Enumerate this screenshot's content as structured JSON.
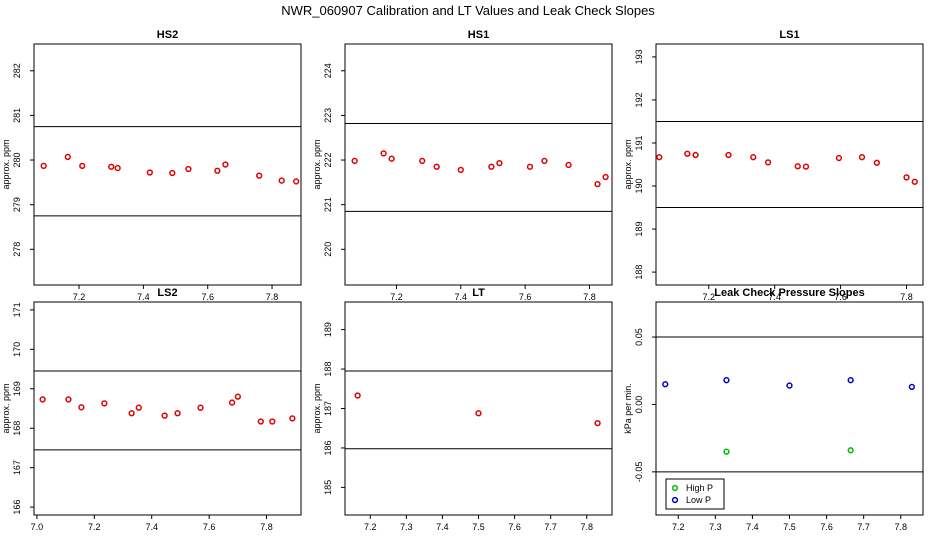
{
  "main_title": "NWR_060907  Calibration and LT Values and Leak Check Slopes",
  "chart_data": [
    {
      "type": "scatter",
      "title": "HS2",
      "ylabel": "approx. ppm",
      "xlim": [
        7.06,
        7.89
      ],
      "ylim": [
        277.2,
        282.6
      ],
      "xticks": [
        7.2,
        7.4,
        7.6,
        7.8
      ],
      "xtick_labels": [
        "7.2",
        "7.4",
        "7.6",
        "7.8"
      ],
      "yticks": [
        278,
        279,
        280,
        281,
        282
      ],
      "ytick_labels": [
        "278",
        "279",
        "280",
        "281",
        "282"
      ],
      "hlines": [
        280.75,
        278.75
      ],
      "series": [
        {
          "color": "#e00000",
          "marker": "circle",
          "x": [
            7.09,
            7.165,
            7.21,
            7.3,
            7.32,
            7.42,
            7.49,
            7.54,
            7.63,
            7.655,
            7.76,
            7.83,
            7.875
          ],
          "y": [
            279.87,
            280.07,
            279.87,
            279.85,
            279.82,
            279.72,
            279.71,
            279.8,
            279.76,
            279.9,
            279.65,
            279.54,
            279.52
          ]
        }
      ]
    },
    {
      "type": "scatter",
      "title": "HS1",
      "ylabel": "approx. ppm",
      "xlim": [
        7.04,
        7.87
      ],
      "ylim": [
        219.2,
        224.6
      ],
      "xticks": [
        7.2,
        7.4,
        7.6,
        7.8
      ],
      "xtick_labels": [
        "7.2",
        "7.4",
        "7.6",
        "7.8"
      ],
      "yticks": [
        220,
        221,
        222,
        223,
        224
      ],
      "ytick_labels": [
        "220",
        "221",
        "222",
        "223",
        "224"
      ],
      "hlines": [
        222.82,
        220.85
      ],
      "series": [
        {
          "color": "#e00000",
          "marker": "circle",
          "x": [
            7.07,
            7.16,
            7.185,
            7.28,
            7.325,
            7.4,
            7.495,
            7.52,
            7.615,
            7.66,
            7.735,
            7.825,
            7.85
          ],
          "y": [
            221.98,
            222.15,
            222.03,
            221.98,
            221.85,
            221.78,
            221.85,
            221.93,
            221.85,
            221.98,
            221.89,
            221.46,
            221.62
          ]
        }
      ]
    },
    {
      "type": "scatter",
      "title": "LS1",
      "ylabel": "approx. ppm",
      "xlim": [
        7.04,
        7.85
      ],
      "ylim": [
        187.7,
        193.3
      ],
      "xticks": [
        7.2,
        7.4,
        7.6,
        7.8
      ],
      "xtick_labels": [
        "7.2",
        "7.4",
        "7.6",
        "7.8"
      ],
      "yticks": [
        188,
        189,
        190,
        191,
        192,
        193
      ],
      "ytick_labels": [
        "188",
        "189",
        "190",
        "191",
        "192",
        "193"
      ],
      "hlines": [
        191.5,
        189.5
      ],
      "series": [
        {
          "color": "#e00000",
          "marker": "circle",
          "x": [
            7.05,
            7.135,
            7.16,
            7.26,
            7.335,
            7.38,
            7.47,
            7.495,
            7.595,
            7.665,
            7.71,
            7.8,
            7.825
          ],
          "y": [
            190.67,
            190.75,
            190.72,
            190.72,
            190.67,
            190.55,
            190.46,
            190.45,
            190.65,
            190.67,
            190.54,
            190.2,
            190.1
          ]
        }
      ]
    },
    {
      "type": "scatter",
      "title": "LS2",
      "ylabel": "approx. ppm",
      "xlim": [
        6.99,
        7.92
      ],
      "ylim": [
        165.8,
        171.2
      ],
      "xticks": [
        7.0,
        7.2,
        7.4,
        7.6,
        7.8
      ],
      "xtick_labels": [
        "7.0",
        "7.2",
        "7.4",
        "7.6",
        "7.8"
      ],
      "yticks": [
        166,
        167,
        168,
        169,
        170,
        171
      ],
      "ytick_labels": [
        "166",
        "167",
        "168",
        "169",
        "170",
        "171"
      ],
      "hlines": [
        169.45,
        167.45
      ],
      "series": [
        {
          "color": "#e00000",
          "marker": "circle",
          "x": [
            7.02,
            7.11,
            7.155,
            7.235,
            7.33,
            7.355,
            7.445,
            7.49,
            7.57,
            7.68,
            7.7,
            7.78,
            7.82,
            7.89
          ],
          "y": [
            168.73,
            168.73,
            168.53,
            168.63,
            168.38,
            168.52,
            168.32,
            168.38,
            168.52,
            168.65,
            168.8,
            168.17,
            168.17,
            168.25
          ]
        }
      ]
    },
    {
      "type": "scatter",
      "title": "LT",
      "ylabel": "approx. ppm",
      "xlim": [
        7.13,
        7.87
      ],
      "ylim": [
        184.3,
        189.7
      ],
      "xticks": [
        7.2,
        7.3,
        7.4,
        7.5,
        7.6,
        7.7,
        7.8
      ],
      "xtick_labels": [
        "7.2",
        "7.3",
        "7.4",
        "7.5",
        "7.6",
        "7.7",
        "7.8"
      ],
      "yticks": [
        185,
        186,
        187,
        188,
        189
      ],
      "ytick_labels": [
        "185",
        "186",
        "187",
        "188",
        "189"
      ],
      "hlines": [
        187.95,
        185.98
      ],
      "series": [
        {
          "color": "#e00000",
          "marker": "circle",
          "x": [
            7.165,
            7.5,
            7.83
          ],
          "y": [
            187.33,
            186.88,
            186.63
          ]
        }
      ]
    },
    {
      "type": "scatter",
      "title": "Leak Check Pressure Slopes",
      "ylabel": "kPa per min.",
      "xlim": [
        7.14,
        7.86
      ],
      "ylim": [
        -0.082,
        0.076
      ],
      "xticks": [
        7.2,
        7.3,
        7.4,
        7.5,
        7.6,
        7.7,
        7.8
      ],
      "xtick_labels": [
        "7.2",
        "7.3",
        "7.4",
        "7.5",
        "7.6",
        "7.7",
        "7.8"
      ],
      "yticks": [
        -0.05,
        0.0,
        0.05
      ],
      "ytick_labels": [
        "-0.05",
        "0.00",
        "0.05"
      ],
      "hlines": [
        0.05,
        -0.05
      ],
      "legend": {
        "position": "bottom-left"
      },
      "series": [
        {
          "name": "High P",
          "color": "#00bb00",
          "marker": "circle",
          "x": [
            7.33,
            7.665
          ],
          "y": [
            -0.035,
            -0.034
          ]
        },
        {
          "name": "Low P",
          "color": "#0000cc",
          "marker": "circle",
          "x": [
            7.165,
            7.33,
            7.5,
            7.665,
            7.83
          ],
          "y": [
            0.015,
            0.018,
            0.014,
            0.018,
            0.013
          ]
        }
      ]
    }
  ]
}
